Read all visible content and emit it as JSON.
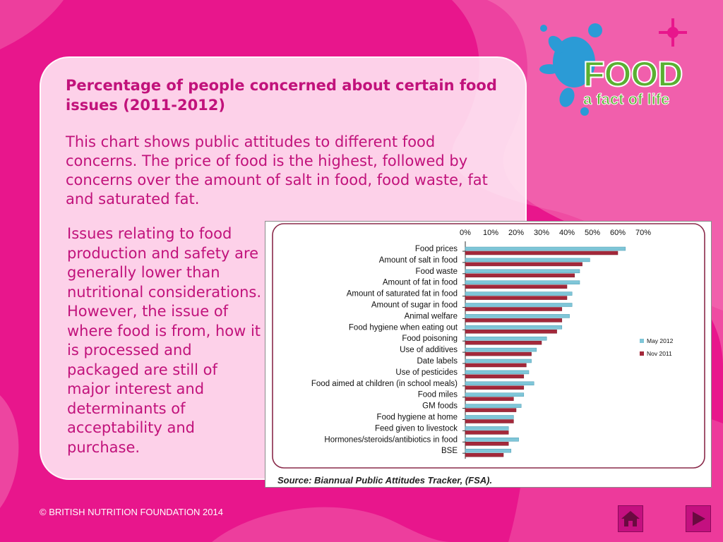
{
  "slide": {
    "title": "Percentage of people concerned about certain food issues (2011-2012)",
    "intro": "This chart shows public attitudes to different food concerns. The price of food is the highest, followed by concerns over the amount of salt in food, food waste, fat and saturated fat.",
    "side_text": "Issues relating to food production and safety are generally lower than nutritional considerations. However, the issue of where food is from, how it is processed and packaged are still of major interest and determinants of acceptability and purchase.",
    "source": "Source: Biannual Public Attitudes Tracker, (FSA).",
    "footer": "© BRITISH NUTRITION FOUNDATION 2014"
  },
  "logo": {
    "word": "FOOD",
    "tagline": "a fact of life"
  },
  "nav": {
    "home_icon": "home-icon",
    "next_icon": "play-next-icon"
  },
  "colors": {
    "background": "#e8168c",
    "accent_text": "#c1127b",
    "series_may_2012": "#7fc6d8",
    "series_nov_2011": "#a3283a",
    "logo_green": "#5ab031",
    "logo_blue": "#2b9bd6"
  },
  "chart_data": {
    "type": "bar",
    "orientation": "horizontal",
    "categories": [
      "Food prices",
      "Amount of salt in food",
      "Food waste",
      "Amount of fat in food",
      "Amount of saturated fat in food",
      "Amount of sugar in food",
      "Animal welfare",
      "Food hygiene when eating out",
      "Food poisoning",
      "Use of additives",
      "Date labels",
      "Use of pesticides",
      "Food aimed at children (in school meals)",
      "Food miles",
      "GM foods",
      "Food hygiene at home",
      "Feed given to livestock",
      "Hormones/steroids/antibiotics in food",
      "BSE"
    ],
    "series": [
      {
        "name": "May 2012",
        "values": [
          63,
          49,
          45,
          45,
          42,
          42,
          41,
          38,
          32,
          28,
          26,
          25,
          27,
          23,
          22,
          19,
          17,
          21,
          18
        ]
      },
      {
        "name": "Nov 2011",
        "values": [
          60,
          46,
          43,
          40,
          40,
          38,
          38,
          36,
          30,
          26,
          24,
          23,
          23,
          19,
          20,
          19,
          17,
          17,
          15
        ]
      }
    ],
    "xlim": [
      0,
      70
    ],
    "x_ticks": [
      "0%",
      "10%",
      "20%",
      "30%",
      "40%",
      "50%",
      "60%",
      "70%"
    ],
    "x_axis_position": "top",
    "legend_position": "right",
    "grid": false
  }
}
